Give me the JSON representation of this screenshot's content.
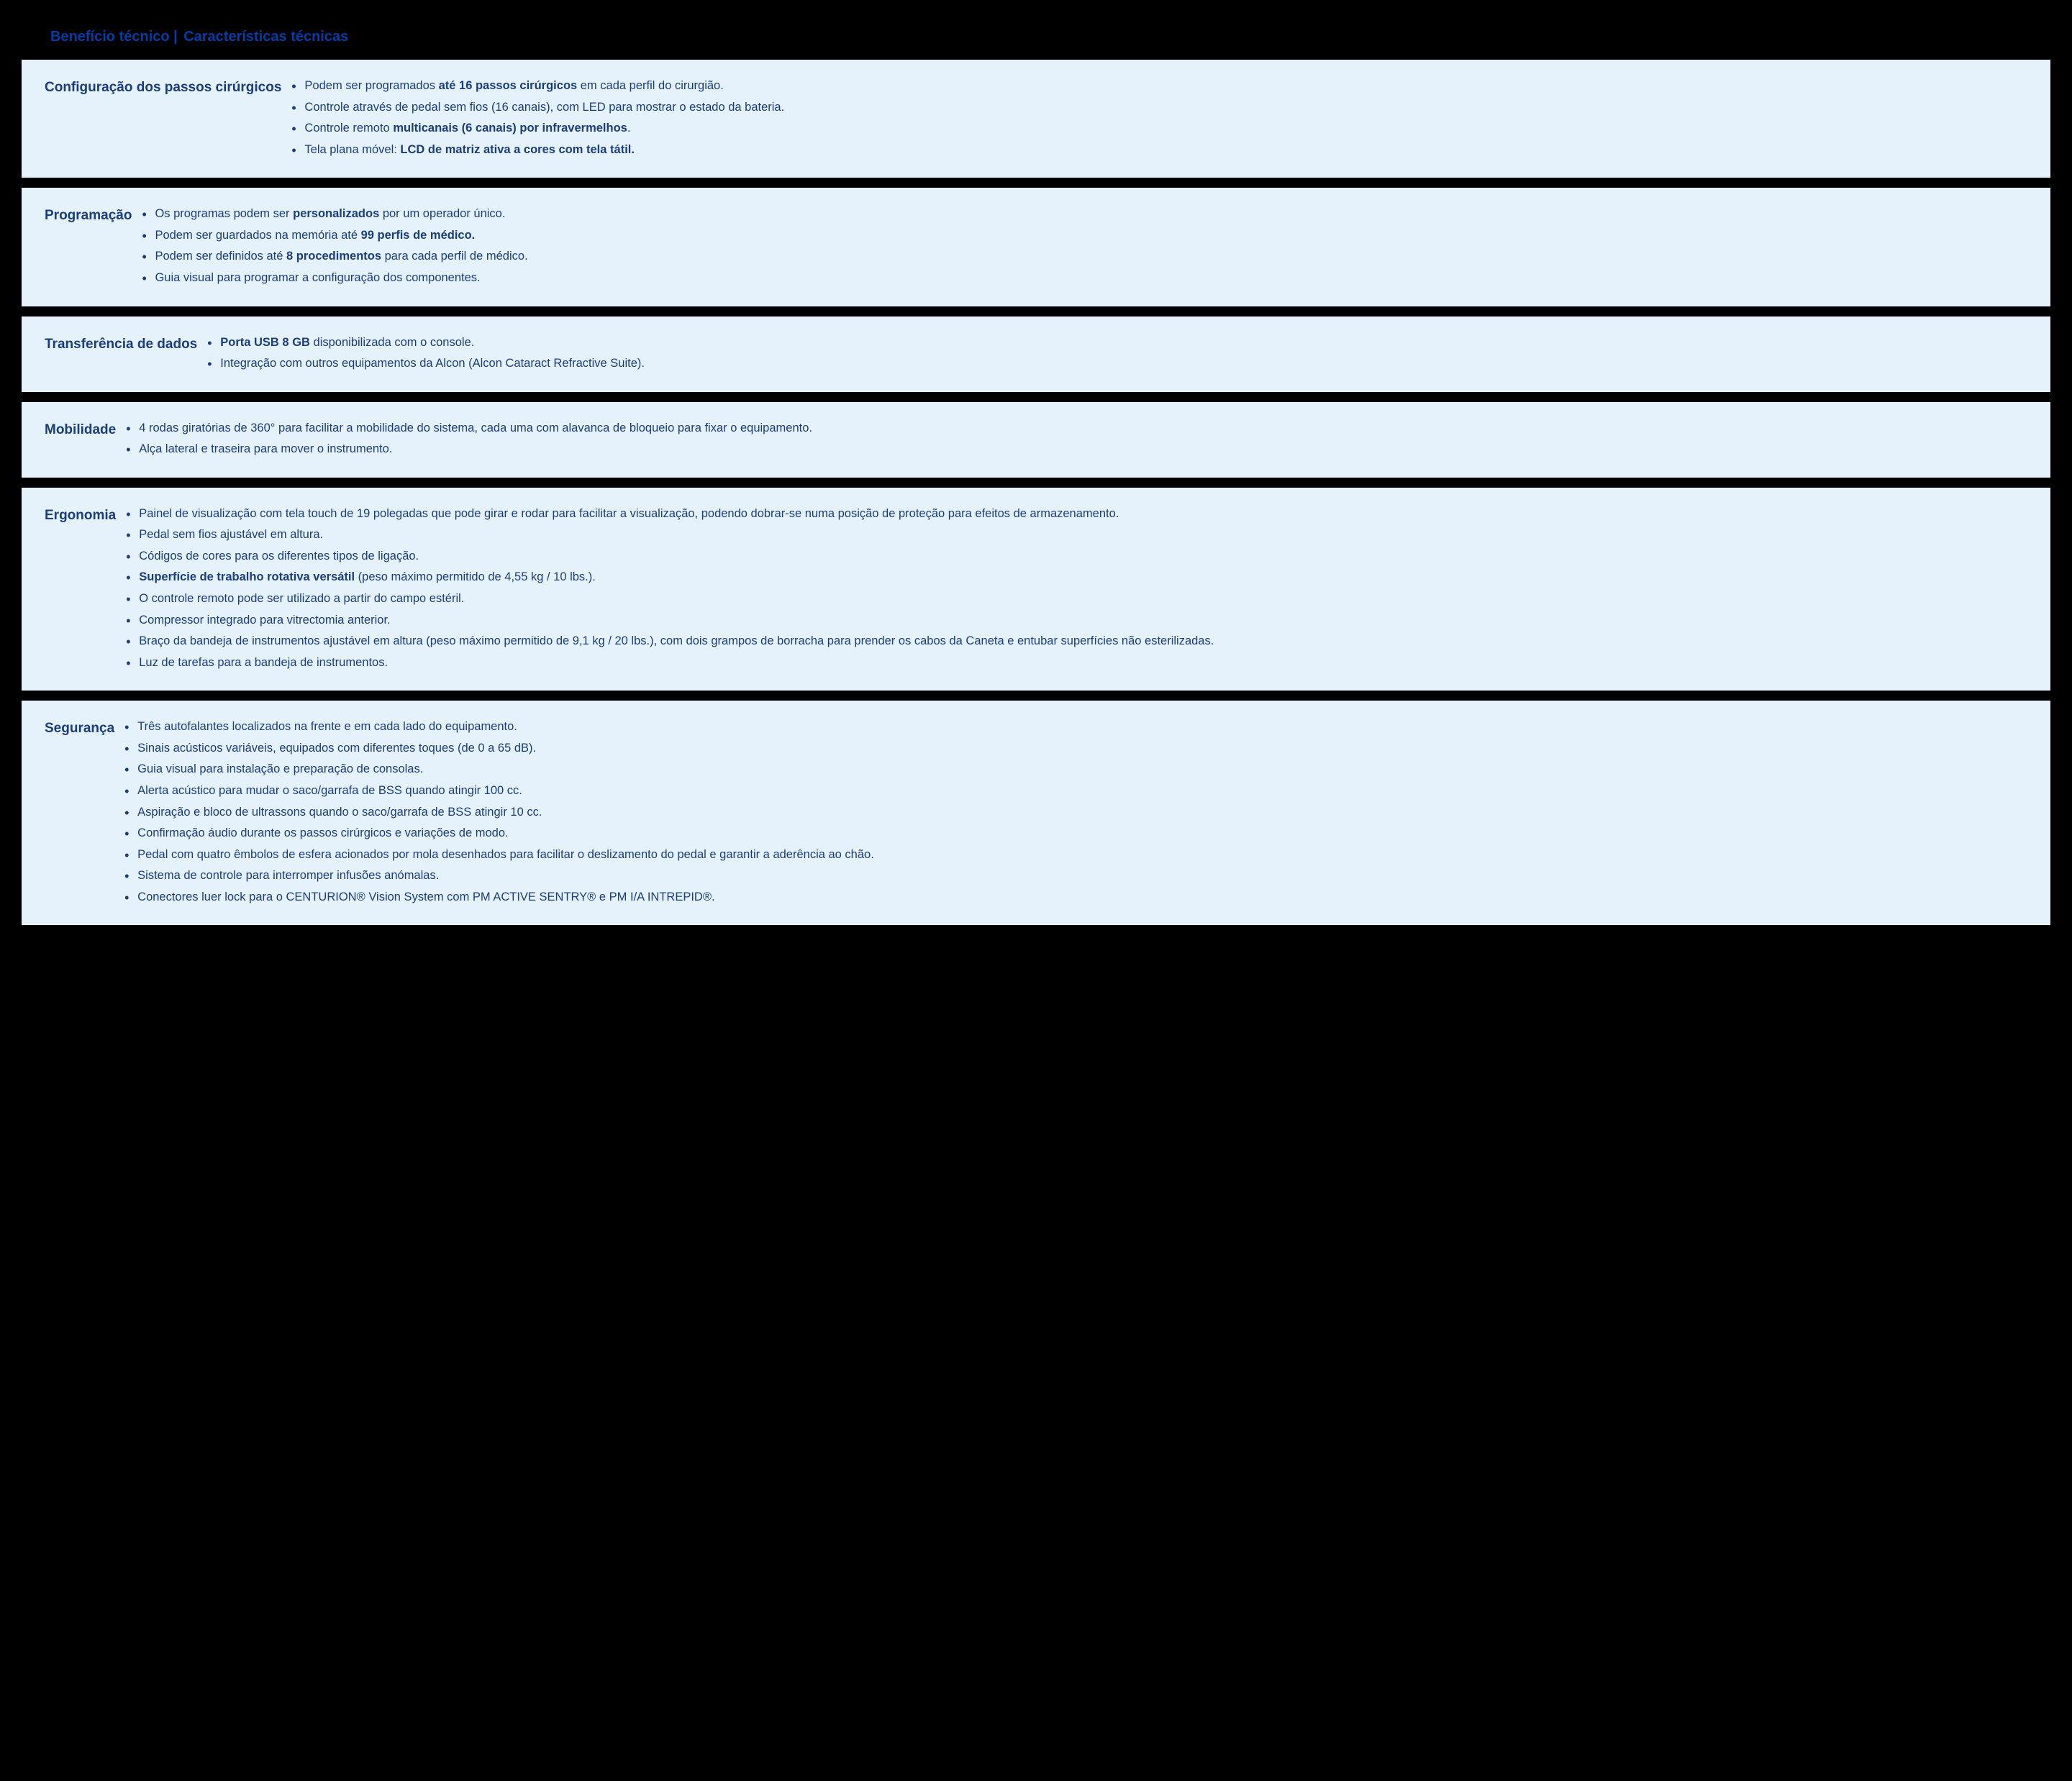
{
  "header": {
    "left_label": "Benefício técnico |",
    "right_label": "Características técnicas"
  },
  "colors": {
    "page_background": "#000000",
    "card_background": "#e6f2fb",
    "primary_text": "#1a3d7c",
    "header_text": "#003da5"
  },
  "sections": [
    {
      "title": "Configuração dos passos cirúrgicos",
      "items": [
        {
          "segments": [
            {
              "t": "Podem ser programados ",
              "b": false
            },
            {
              "t": "até 16 passos cirúrgicos",
              "b": true
            },
            {
              "t": " em cada perfil do cirurgião.",
              "b": false
            }
          ]
        },
        {
          "segments": [
            {
              "t": "Controle através de pedal sem fios (16 canais), com LED para mostrar o estado da bateria.",
              "b": false
            }
          ]
        },
        {
          "segments": [
            {
              "t": "Controle remoto ",
              "b": false
            },
            {
              "t": "multicanais (6 canais) por infravermelhos",
              "b": true
            },
            {
              "t": ".",
              "b": false
            }
          ]
        },
        {
          "segments": [
            {
              "t": "Tela plana móvel: ",
              "b": false
            },
            {
              "t": "LCD de matriz ativa a cores com tela tátil.",
              "b": true
            }
          ]
        }
      ]
    },
    {
      "title": "Programação",
      "items": [
        {
          "segments": [
            {
              "t": "Os programas podem ser ",
              "b": false
            },
            {
              "t": "personalizados",
              "b": true
            },
            {
              "t": " por um operador único.",
              "b": false
            }
          ]
        },
        {
          "segments": [
            {
              "t": "Podem ser guardados na memória até ",
              "b": false
            },
            {
              "t": "99 perfis de médico.",
              "b": true
            }
          ]
        },
        {
          "segments": [
            {
              "t": "Podem ser definidos até ",
              "b": false
            },
            {
              "t": "8 procedimentos",
              "b": true
            },
            {
              "t": " para cada perfil de médico.",
              "b": false
            }
          ]
        },
        {
          "segments": [
            {
              "t": "Guia visual para programar a configuração dos componentes.",
              "b": false
            }
          ]
        }
      ]
    },
    {
      "title": "Transferência de dados",
      "items": [
        {
          "segments": [
            {
              "t": "Porta USB 8 GB",
              "b": true
            },
            {
              "t": " disponibilizada com o console.",
              "b": false
            }
          ]
        },
        {
          "segments": [
            {
              "t": "Integração com outros equipamentos da Alcon (Alcon Cataract Refractive Suite).",
              "b": false
            }
          ]
        }
      ]
    },
    {
      "title": "Mobilidade",
      "items": [
        {
          "segments": [
            {
              "t": "4 rodas giratórias de 360° para facilitar a mobilidade do sistema, cada uma com alavanca de bloqueio para fixar o equipamento.",
              "b": false
            }
          ]
        },
        {
          "segments": [
            {
              "t": "Alça lateral e traseira para mover o instrumento.",
              "b": false
            }
          ]
        }
      ]
    },
    {
      "title": "Ergonomia",
      "items": [
        {
          "segments": [
            {
              "t": "Painel de visualização com tela touch de 19 polegadas que pode girar e rodar para facilitar a visualização, podendo dobrar-se numa posição de proteção para efeitos de  armazenamento.",
              "b": false
            }
          ]
        },
        {
          "segments": [
            {
              "t": "Pedal sem fios ajustável em altura.",
              "b": false
            }
          ]
        },
        {
          "segments": [
            {
              "t": "Códigos de cores para os diferentes tipos de ligação.",
              "b": false
            }
          ]
        },
        {
          "segments": [
            {
              "t": "Superfície de trabalho rotativa versátil",
              "b": true
            },
            {
              "t": " (peso máximo permitido de 4,55 kg / 10 lbs.).",
              "b": false
            }
          ]
        },
        {
          "segments": [
            {
              "t": "O controle remoto pode ser utilizado a partir do campo estéril.",
              "b": false
            }
          ]
        },
        {
          "segments": [
            {
              "t": "Compressor integrado para vitrectomia anterior.",
              "b": false
            }
          ]
        },
        {
          "segments": [
            {
              "t": "Braço da bandeja de instrumentos ajustável em altura (peso máximo permitido de 9,1 kg / 20 lbs.), com dois grampos de borracha para prender os cabos da Caneta e entubar superfícies não esterilizadas.",
              "b": false
            }
          ]
        },
        {
          "segments": [
            {
              "t": "Luz de tarefas para a bandeja de instrumentos.",
              "b": false
            }
          ]
        }
      ]
    },
    {
      "title": "Segurança",
      "items": [
        {
          "segments": [
            {
              "t": "Três autofalantes localizados na frente e em cada lado do equipamento.",
              "b": false
            }
          ]
        },
        {
          "segments": [
            {
              "t": "Sinais acústicos variáveis, equipados com diferentes toques (de 0 a 65 dB).",
              "b": false
            }
          ]
        },
        {
          "segments": [
            {
              "t": "Guia visual para instalação e preparação de consolas.",
              "b": false
            }
          ]
        },
        {
          "segments": [
            {
              "t": "Alerta acústico para mudar o saco/garrafa de BSS quando atingir 100 cc.",
              "b": false
            }
          ]
        },
        {
          "segments": [
            {
              "t": "Aspiração e bloco de ultrassons quando o saco/garrafa de BSS atingir 10 cc.",
              "b": false
            }
          ]
        },
        {
          "segments": [
            {
              "t": "Confirmação áudio durante os passos cirúrgicos e variações de modo.",
              "b": false
            }
          ]
        },
        {
          "segments": [
            {
              "t": "Pedal com quatro êmbolos de esfera acionados por mola desenhados para facilitar o deslizamento do pedal e garantir a aderência ao chão.",
              "b": false
            }
          ]
        },
        {
          "segments": [
            {
              "t": "Sistema de controle para interromper infusões anómalas.",
              "b": false
            }
          ]
        },
        {
          "segments": [
            {
              "t": "Conectores luer lock para o CENTURION® Vision System com PM ACTIVE SENTRY® e PM I/A INTREPID®.",
              "b": false
            }
          ]
        }
      ]
    }
  ]
}
